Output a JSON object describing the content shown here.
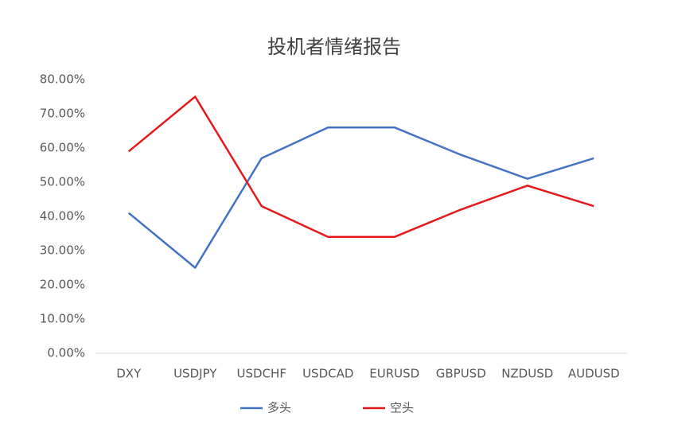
{
  "chart_data": {
    "type": "line",
    "title": "投机者情绪报告",
    "categories": [
      "DXY",
      "USDJPY",
      "USDCHF",
      "USDCAD",
      "EURUSD",
      "GBPUSD",
      "NZDUSD",
      "AUDUSD"
    ],
    "series": [
      {
        "name": "多头",
        "color": "#4472c4",
        "values": [
          41,
          25,
          57,
          66,
          66,
          58,
          51,
          57
        ]
      },
      {
        "name": "空头",
        "color": "#e31a1c",
        "values": [
          59,
          75,
          43,
          34,
          34,
          42,
          49,
          43
        ]
      }
    ],
    "ylim": [
      0,
      80
    ],
    "yticks": [
      {
        "value": 0,
        "label": "0.00%"
      },
      {
        "value": 10,
        "label": "10.00%"
      },
      {
        "value": 20,
        "label": "20.00%"
      },
      {
        "value": 30,
        "label": "30.00%"
      },
      {
        "value": 40,
        "label": "40.00%"
      },
      {
        "value": 50,
        "label": "50.00%"
      },
      {
        "value": 60,
        "label": "60.00%"
      },
      {
        "value": 70,
        "label": "70.00%"
      },
      {
        "value": 80,
        "label": "80.00%"
      }
    ],
    "legend": "bottom"
  }
}
